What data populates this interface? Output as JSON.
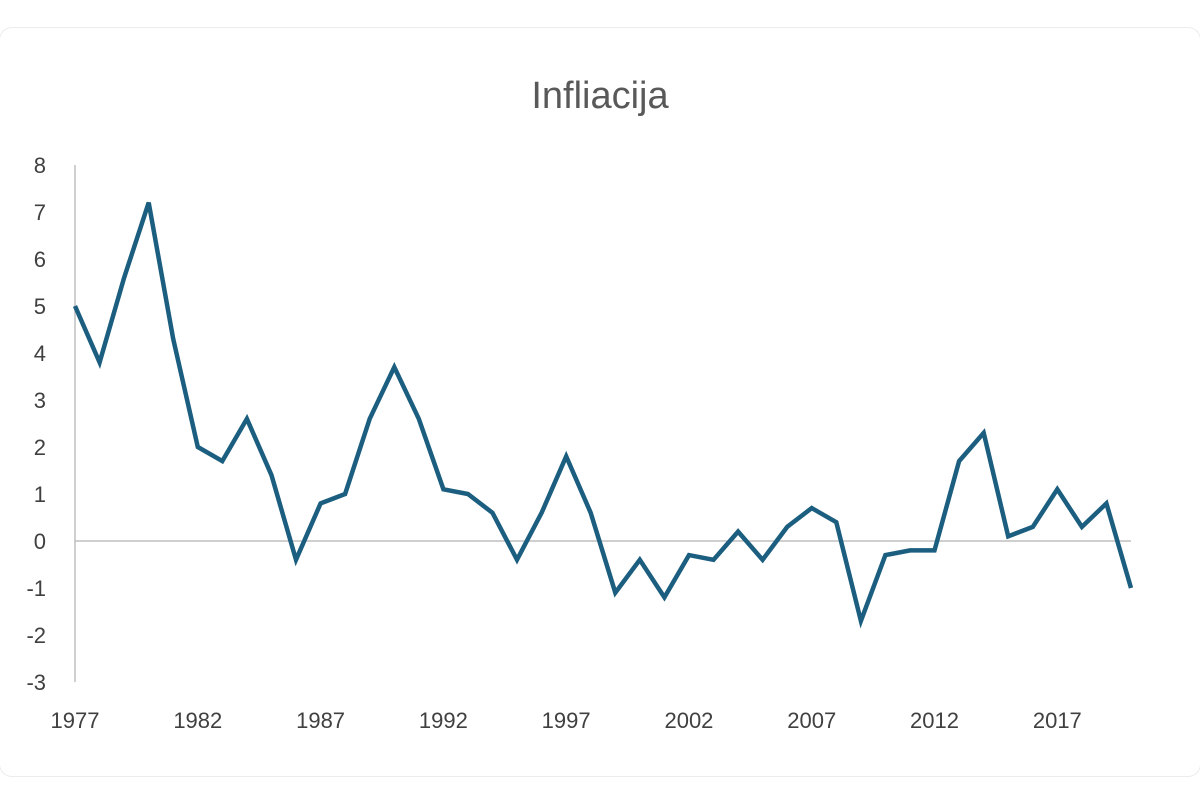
{
  "chart_data": {
    "type": "line",
    "title": "Infliacija",
    "xlabel": "",
    "ylabel": "",
    "ylim": [
      -3,
      8
    ],
    "xlim": [
      1977,
      2020
    ],
    "y_ticks": [
      "8",
      "7",
      "6",
      "5",
      "4",
      "3",
      "2",
      "1",
      "0",
      "-1",
      "-2",
      "-3"
    ],
    "x_ticks": [
      "1977",
      "1982",
      "1987",
      "1992",
      "1997",
      "2002",
      "2007",
      "2012",
      "2017"
    ],
    "grid": false,
    "legend": "none",
    "line_color": "#1b5e7f",
    "x": [
      1977,
      1978,
      1979,
      1980,
      1981,
      1982,
      1983,
      1984,
      1985,
      1986,
      1987,
      1988,
      1989,
      1990,
      1991,
      1992,
      1993,
      1994,
      1995,
      1996,
      1997,
      1998,
      1999,
      2000,
      2001,
      2002,
      2003,
      2004,
      2005,
      2006,
      2007,
      2008,
      2009,
      2010,
      2011,
      2012,
      2013,
      2014,
      2015,
      2016,
      2017,
      2018,
      2019,
      2020
    ],
    "y": [
      5.0,
      3.8,
      5.6,
      7.2,
      4.3,
      2.0,
      1.7,
      2.6,
      1.4,
      -0.4,
      0.8,
      1.0,
      2.6,
      3.7,
      2.6,
      1.1,
      1.0,
      0.6,
      -0.4,
      0.6,
      1.8,
      0.6,
      -1.1,
      -0.4,
      -1.2,
      -0.3,
      -0.4,
      0.2,
      -0.4,
      0.3,
      0.7,
      0.4,
      -1.7,
      -0.3,
      -0.2,
      -0.2,
      1.7,
      2.3,
      0.1,
      0.3,
      1.1,
      0.3,
      0.8,
      -1.0
    ]
  }
}
